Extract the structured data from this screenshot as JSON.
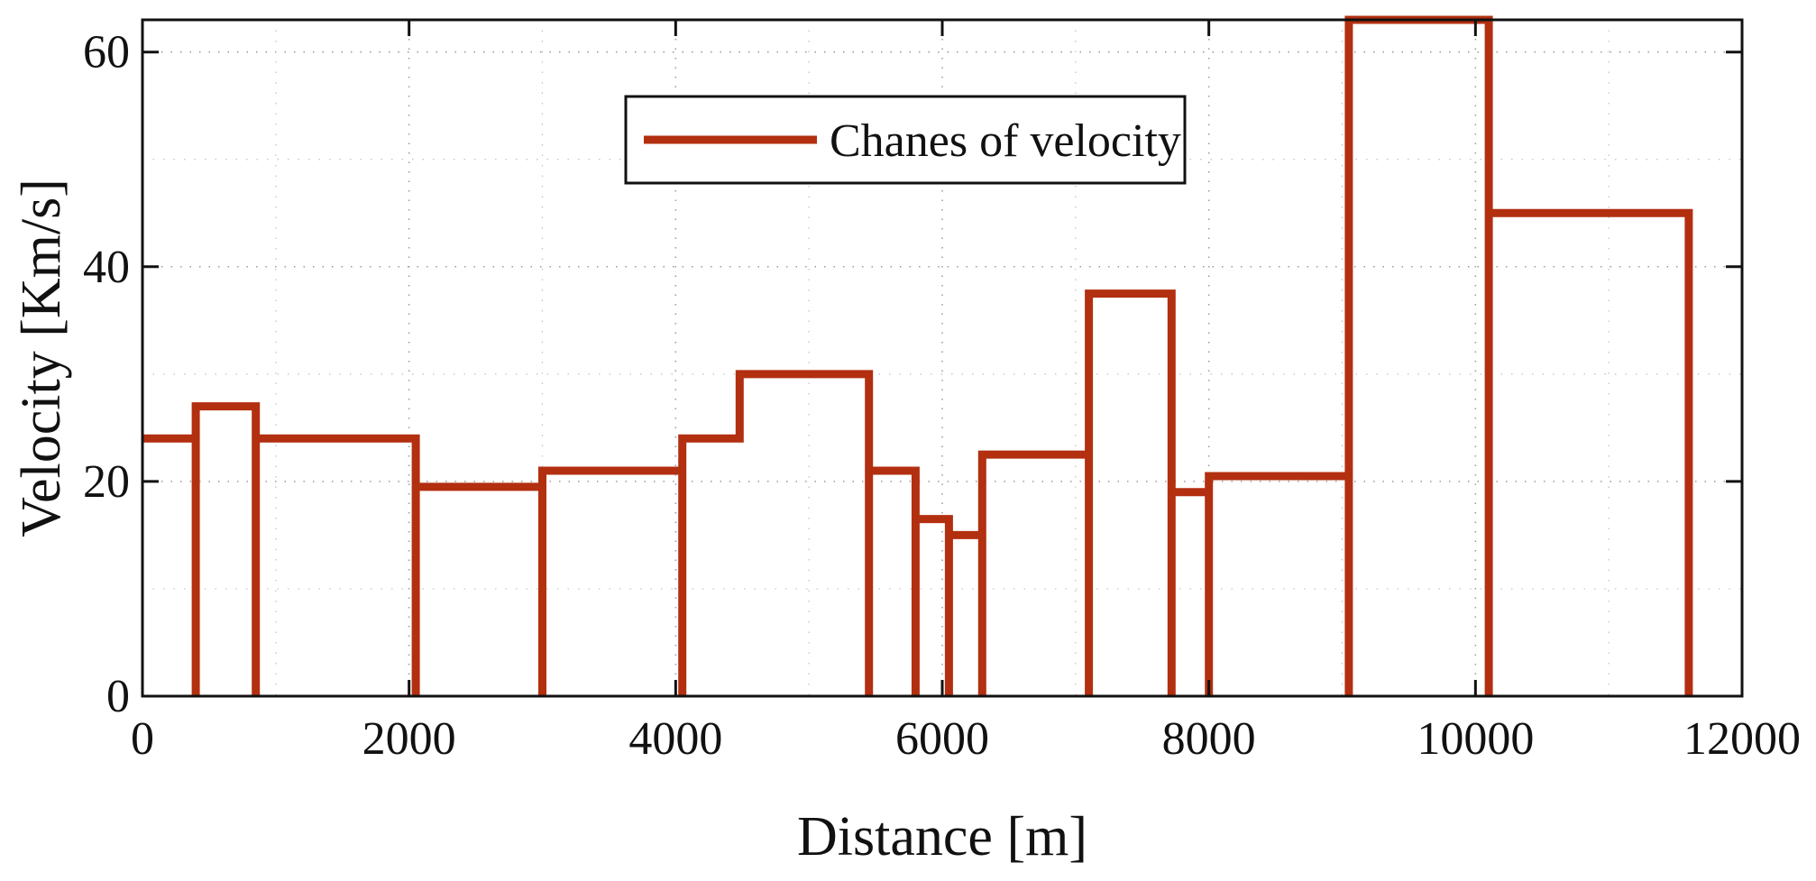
{
  "chart_data": {
    "type": "line",
    "title": "",
    "xlabel": "Distance [m]",
    "ylabel": "Velocity [Km/s]",
    "xlim": [
      0,
      12000
    ],
    "ylim": [
      0,
      63
    ],
    "xticks": [
      "0",
      "2000",
      "4000",
      "6000",
      "8000",
      "10000",
      "12000"
    ],
    "yticks": [
      "0",
      "20",
      "40",
      "60"
    ],
    "grid": true,
    "legend_position": "top-center",
    "series": [
      {
        "name": "Chanes of velocity",
        "color": "#b22f10",
        "x": [
          0,
          400,
          400,
          400,
          850,
          850,
          850,
          2050,
          2050,
          2050,
          3000,
          3000,
          3000,
          4050,
          4050,
          4050,
          4480,
          4480,
          5450,
          5450,
          5450,
          5800,
          5800,
          5800,
          6050,
          6050,
          6050,
          6300,
          6300,
          6300,
          7100,
          7100,
          7100,
          7720,
          7720,
          7720,
          8000,
          8000,
          8000,
          9050,
          9050,
          9050,
          10100,
          10100,
          10100,
          11600,
          11600
        ],
        "y": [
          24,
          24,
          0,
          27,
          27,
          0,
          24,
          24,
          0,
          19.5,
          19.5,
          0,
          21,
          21,
          0,
          24,
          24,
          30,
          30,
          0,
          21,
          21,
          0,
          16.5,
          16.5,
          0,
          15,
          15,
          0,
          22.5,
          22.5,
          0,
          37.5,
          37.5,
          0,
          19,
          19,
          0,
          20.5,
          20.5,
          0,
          63,
          63,
          0,
          45,
          45,
          0
        ]
      }
    ]
  }
}
